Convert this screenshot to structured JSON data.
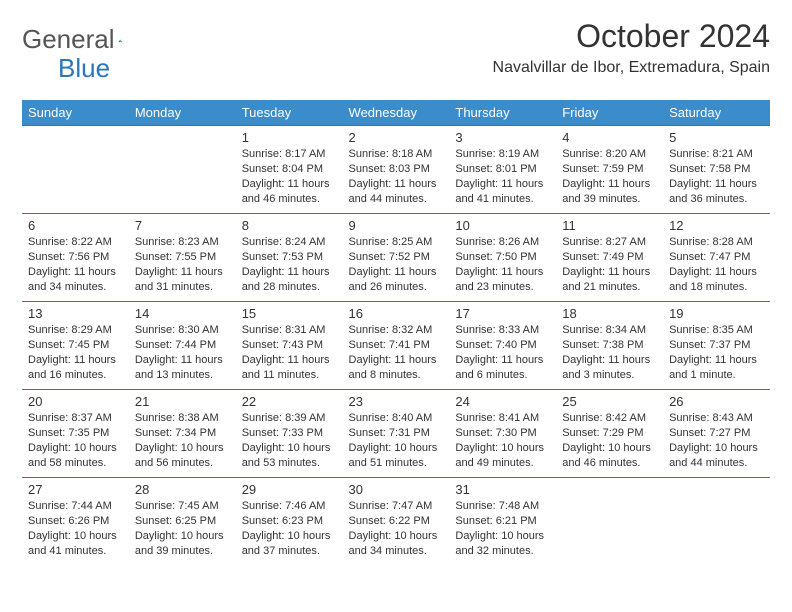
{
  "logo": {
    "text1": "General",
    "text2": "Blue"
  },
  "title": "October 2024",
  "location": "Navalvillar de Ibor, Extremadura, Spain",
  "colors": {
    "header_bg": "#3b8ccb",
    "header_text": "#ffffff",
    "border": "#2976bb",
    "logo_blue": "#2976bb",
    "body_text": "#333333",
    "page_bg": "#ffffff"
  },
  "day_headers": [
    "Sunday",
    "Monday",
    "Tuesday",
    "Wednesday",
    "Thursday",
    "Friday",
    "Saturday"
  ],
  "weeks": [
    [
      null,
      null,
      {
        "n": "1",
        "sunrise": "8:17 AM",
        "sunset": "8:04 PM",
        "daylight": "11 hours and 46 minutes."
      },
      {
        "n": "2",
        "sunrise": "8:18 AM",
        "sunset": "8:03 PM",
        "daylight": "11 hours and 44 minutes."
      },
      {
        "n": "3",
        "sunrise": "8:19 AM",
        "sunset": "8:01 PM",
        "daylight": "11 hours and 41 minutes."
      },
      {
        "n": "4",
        "sunrise": "8:20 AM",
        "sunset": "7:59 PM",
        "daylight": "11 hours and 39 minutes."
      },
      {
        "n": "5",
        "sunrise": "8:21 AM",
        "sunset": "7:58 PM",
        "daylight": "11 hours and 36 minutes."
      }
    ],
    [
      {
        "n": "6",
        "sunrise": "8:22 AM",
        "sunset": "7:56 PM",
        "daylight": "11 hours and 34 minutes."
      },
      {
        "n": "7",
        "sunrise": "8:23 AM",
        "sunset": "7:55 PM",
        "daylight": "11 hours and 31 minutes."
      },
      {
        "n": "8",
        "sunrise": "8:24 AM",
        "sunset": "7:53 PM",
        "daylight": "11 hours and 28 minutes."
      },
      {
        "n": "9",
        "sunrise": "8:25 AM",
        "sunset": "7:52 PM",
        "daylight": "11 hours and 26 minutes."
      },
      {
        "n": "10",
        "sunrise": "8:26 AM",
        "sunset": "7:50 PM",
        "daylight": "11 hours and 23 minutes."
      },
      {
        "n": "11",
        "sunrise": "8:27 AM",
        "sunset": "7:49 PM",
        "daylight": "11 hours and 21 minutes."
      },
      {
        "n": "12",
        "sunrise": "8:28 AM",
        "sunset": "7:47 PM",
        "daylight": "11 hours and 18 minutes."
      }
    ],
    [
      {
        "n": "13",
        "sunrise": "8:29 AM",
        "sunset": "7:45 PM",
        "daylight": "11 hours and 16 minutes."
      },
      {
        "n": "14",
        "sunrise": "8:30 AM",
        "sunset": "7:44 PM",
        "daylight": "11 hours and 13 minutes."
      },
      {
        "n": "15",
        "sunrise": "8:31 AM",
        "sunset": "7:43 PM",
        "daylight": "11 hours and 11 minutes."
      },
      {
        "n": "16",
        "sunrise": "8:32 AM",
        "sunset": "7:41 PM",
        "daylight": "11 hours and 8 minutes."
      },
      {
        "n": "17",
        "sunrise": "8:33 AM",
        "sunset": "7:40 PM",
        "daylight": "11 hours and 6 minutes."
      },
      {
        "n": "18",
        "sunrise": "8:34 AM",
        "sunset": "7:38 PM",
        "daylight": "11 hours and 3 minutes."
      },
      {
        "n": "19",
        "sunrise": "8:35 AM",
        "sunset": "7:37 PM",
        "daylight": "11 hours and 1 minute."
      }
    ],
    [
      {
        "n": "20",
        "sunrise": "8:37 AM",
        "sunset": "7:35 PM",
        "daylight": "10 hours and 58 minutes."
      },
      {
        "n": "21",
        "sunrise": "8:38 AM",
        "sunset": "7:34 PM",
        "daylight": "10 hours and 56 minutes."
      },
      {
        "n": "22",
        "sunrise": "8:39 AM",
        "sunset": "7:33 PM",
        "daylight": "10 hours and 53 minutes."
      },
      {
        "n": "23",
        "sunrise": "8:40 AM",
        "sunset": "7:31 PM",
        "daylight": "10 hours and 51 minutes."
      },
      {
        "n": "24",
        "sunrise": "8:41 AM",
        "sunset": "7:30 PM",
        "daylight": "10 hours and 49 minutes."
      },
      {
        "n": "25",
        "sunrise": "8:42 AM",
        "sunset": "7:29 PM",
        "daylight": "10 hours and 46 minutes."
      },
      {
        "n": "26",
        "sunrise": "8:43 AM",
        "sunset": "7:27 PM",
        "daylight": "10 hours and 44 minutes."
      }
    ],
    [
      {
        "n": "27",
        "sunrise": "7:44 AM",
        "sunset": "6:26 PM",
        "daylight": "10 hours and 41 minutes."
      },
      {
        "n": "28",
        "sunrise": "7:45 AM",
        "sunset": "6:25 PM",
        "daylight": "10 hours and 39 minutes."
      },
      {
        "n": "29",
        "sunrise": "7:46 AM",
        "sunset": "6:23 PM",
        "daylight": "10 hours and 37 minutes."
      },
      {
        "n": "30",
        "sunrise": "7:47 AM",
        "sunset": "6:22 PM",
        "daylight": "10 hours and 34 minutes."
      },
      {
        "n": "31",
        "sunrise": "7:48 AM",
        "sunset": "6:21 PM",
        "daylight": "10 hours and 32 minutes."
      },
      null,
      null
    ]
  ]
}
